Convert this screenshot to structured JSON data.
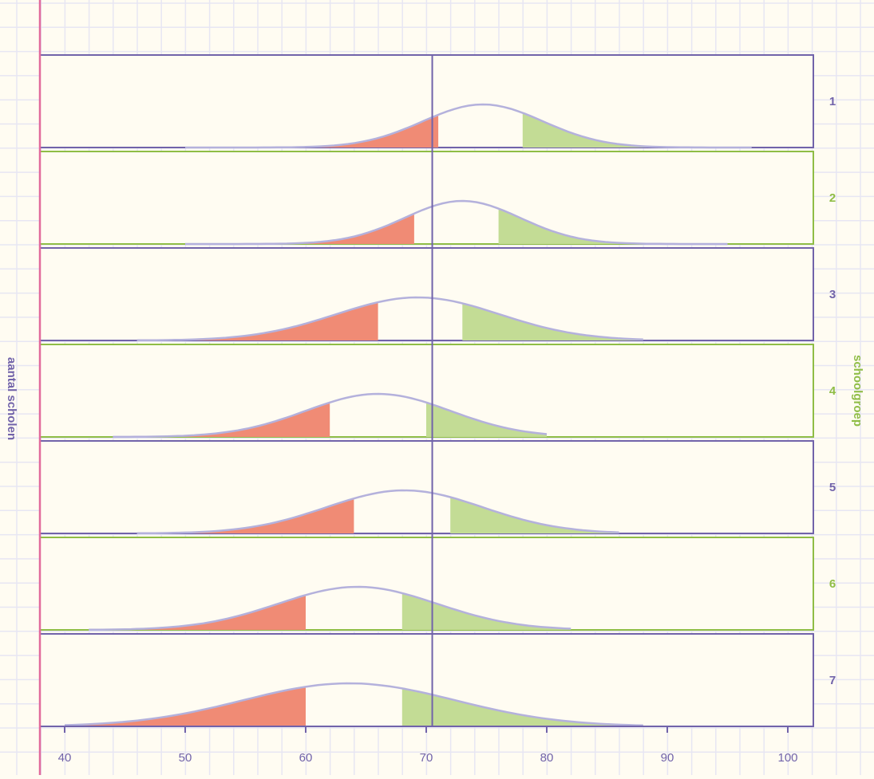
{
  "chart_data": {
    "type": "area",
    "title": "",
    "xlabel": "",
    "ylabel": "aantal scholen",
    "right_label": "schoolgroep",
    "xlim": [
      38,
      102
    ],
    "x_ticks": [
      40,
      50,
      60,
      70,
      80,
      90,
      100
    ],
    "reference_x": 70.5,
    "grid": true,
    "series": [
      {
        "name": "1",
        "mean": 74.7,
        "sd": 5.0,
        "low_cut": 71,
        "high_cut": 78,
        "min": 50,
        "max": 97
      },
      {
        "name": "2",
        "mean": 73.0,
        "sd": 4.8,
        "low_cut": 69,
        "high_cut": 76,
        "min": 50,
        "max": 95
      },
      {
        "name": "3",
        "mean": 69.3,
        "sd": 6.8,
        "low_cut": 66,
        "high_cut": 73,
        "min": 46,
        "max": 88
      },
      {
        "name": "4",
        "mean": 66.0,
        "sd": 6.0,
        "low_cut": 62,
        "high_cut": 70,
        "min": 44,
        "max": 80
      },
      {
        "name": "5",
        "mean": 68.2,
        "sd": 6.5,
        "low_cut": 64,
        "high_cut": 72,
        "min": 46,
        "max": 86
      },
      {
        "name": "6",
        "mean": 64.3,
        "sd": 6.6,
        "low_cut": 60,
        "high_cut": 68,
        "min": 42,
        "max": 82
      },
      {
        "name": "7",
        "mean": 63.6,
        "sd": 8.8,
        "low_cut": 60,
        "high_cut": 68,
        "min": 40,
        "max": 88
      }
    ],
    "colors": {
      "background": "#fffcf2",
      "grid": "#e7e6f3",
      "low_fill": "#f08b75",
      "high_fill": "#c3dc95",
      "curve": "#b4b1dc",
      "purple": "#7163aa",
      "green": "#8fbd46",
      "pink": "#e16a9c"
    }
  }
}
